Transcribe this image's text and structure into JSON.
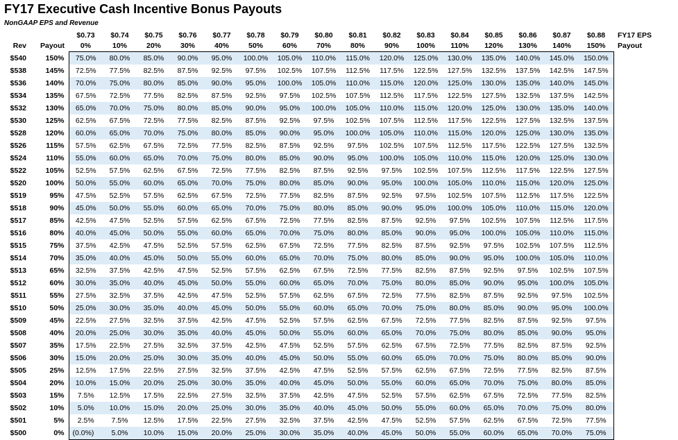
{
  "title": "FY17 Executive Cash Incentive Bonus Payouts",
  "subtitle": "NonGAAP EPS and Revenue",
  "header": {
    "eps_values": [
      "$0.73",
      "$0.74",
      "$0.75",
      "$0.76",
      "$0.77",
      "$0.78",
      "$0.79",
      "$0.80",
      "$0.81",
      "$0.82",
      "$0.83",
      "$0.84",
      "$0.85",
      "$0.86",
      "$0.87",
      "$0.88"
    ],
    "eps_payouts": [
      "0%",
      "10%",
      "20%",
      "30%",
      "40%",
      "50%",
      "60%",
      "70%",
      "80%",
      "90%",
      "100%",
      "110%",
      "120%",
      "130%",
      "140%",
      "150%"
    ],
    "rev_label": "Rev",
    "payout_label": "Payout",
    "eps_label": "FY17 EPS",
    "eps_payout_label": "Payout"
  },
  "colors": {
    "band": "#ddebf7",
    "background": "#ffffff",
    "text": "#000000"
  },
  "rows": [
    {
      "rev": "$540",
      "payout": "150%",
      "cells": [
        "75.0%",
        "80.0%",
        "85.0%",
        "90.0%",
        "95.0%",
        "100.0%",
        "105.0%",
        "110.0%",
        "115.0%",
        "120.0%",
        "125.0%",
        "130.0%",
        "135.0%",
        "140.0%",
        "145.0%",
        "150.0%"
      ]
    },
    {
      "rev": "$538",
      "payout": "145%",
      "cells": [
        "72.5%",
        "77.5%",
        "82.5%",
        "87.5%",
        "92.5%",
        "97.5%",
        "102.5%",
        "107.5%",
        "112.5%",
        "117.5%",
        "122.5%",
        "127.5%",
        "132.5%",
        "137.5%",
        "142.5%",
        "147.5%"
      ]
    },
    {
      "rev": "$536",
      "payout": "140%",
      "cells": [
        "70.0%",
        "75.0%",
        "80.0%",
        "85.0%",
        "90.0%",
        "95.0%",
        "100.0%",
        "105.0%",
        "110.0%",
        "115.0%",
        "120.0%",
        "125.0%",
        "130.0%",
        "135.0%",
        "140.0%",
        "145.0%"
      ]
    },
    {
      "rev": "$534",
      "payout": "135%",
      "cells": [
        "67.5%",
        "72.5%",
        "77.5%",
        "82.5%",
        "87.5%",
        "92.5%",
        "97.5%",
        "102.5%",
        "107.5%",
        "112.5%",
        "117.5%",
        "122.5%",
        "127.5%",
        "132.5%",
        "137.5%",
        "142.5%"
      ]
    },
    {
      "rev": "$532",
      "payout": "130%",
      "cells": [
        "65.0%",
        "70.0%",
        "75.0%",
        "80.0%",
        "85.0%",
        "90.0%",
        "95.0%",
        "100.0%",
        "105.0%",
        "110.0%",
        "115.0%",
        "120.0%",
        "125.0%",
        "130.0%",
        "135.0%",
        "140.0%"
      ]
    },
    {
      "rev": "$530",
      "payout": "125%",
      "cells": [
        "62.5%",
        "67.5%",
        "72.5%",
        "77.5%",
        "82.5%",
        "87.5%",
        "92.5%",
        "97.5%",
        "102.5%",
        "107.5%",
        "112.5%",
        "117.5%",
        "122.5%",
        "127.5%",
        "132.5%",
        "137.5%"
      ]
    },
    {
      "rev": "$528",
      "payout": "120%",
      "cells": [
        "60.0%",
        "65.0%",
        "70.0%",
        "75.0%",
        "80.0%",
        "85.0%",
        "90.0%",
        "95.0%",
        "100.0%",
        "105.0%",
        "110.0%",
        "115.0%",
        "120.0%",
        "125.0%",
        "130.0%",
        "135.0%"
      ]
    },
    {
      "rev": "$526",
      "payout": "115%",
      "cells": [
        "57.5%",
        "62.5%",
        "67.5%",
        "72.5%",
        "77.5%",
        "82.5%",
        "87.5%",
        "92.5%",
        "97.5%",
        "102.5%",
        "107.5%",
        "112.5%",
        "117.5%",
        "122.5%",
        "127.5%",
        "132.5%"
      ]
    },
    {
      "rev": "$524",
      "payout": "110%",
      "cells": [
        "55.0%",
        "60.0%",
        "65.0%",
        "70.0%",
        "75.0%",
        "80.0%",
        "85.0%",
        "90.0%",
        "95.0%",
        "100.0%",
        "105.0%",
        "110.0%",
        "115.0%",
        "120.0%",
        "125.0%",
        "130.0%"
      ]
    },
    {
      "rev": "$522",
      "payout": "105%",
      "cells": [
        "52.5%",
        "57.5%",
        "62.5%",
        "67.5%",
        "72.5%",
        "77.5%",
        "82.5%",
        "87.5%",
        "92.5%",
        "97.5%",
        "102.5%",
        "107.5%",
        "112.5%",
        "117.5%",
        "122.5%",
        "127.5%"
      ]
    },
    {
      "rev": "$520",
      "payout": "100%",
      "cells": [
        "50.0%",
        "55.0%",
        "60.0%",
        "65.0%",
        "70.0%",
        "75.0%",
        "80.0%",
        "85.0%",
        "90.0%",
        "95.0%",
        "100.0%",
        "105.0%",
        "110.0%",
        "115.0%",
        "120.0%",
        "125.0%"
      ]
    },
    {
      "rev": "$519",
      "payout": "95%",
      "cells": [
        "47.5%",
        "52.5%",
        "57.5%",
        "62.5%",
        "67.5%",
        "72.5%",
        "77.5%",
        "82.5%",
        "87.5%",
        "92.5%",
        "97.5%",
        "102.5%",
        "107.5%",
        "112.5%",
        "117.5%",
        "122.5%"
      ]
    },
    {
      "rev": "$518",
      "payout": "90%",
      "cells": [
        "45.0%",
        "50.0%",
        "55.0%",
        "60.0%",
        "65.0%",
        "70.0%",
        "75.0%",
        "80.0%",
        "85.0%",
        "90.0%",
        "95.0%",
        "100.0%",
        "105.0%",
        "110.0%",
        "115.0%",
        "120.0%"
      ]
    },
    {
      "rev": "$517",
      "payout": "85%",
      "cells": [
        "42.5%",
        "47.5%",
        "52.5%",
        "57.5%",
        "62.5%",
        "67.5%",
        "72.5%",
        "77.5%",
        "82.5%",
        "87.5%",
        "92.5%",
        "97.5%",
        "102.5%",
        "107.5%",
        "112.5%",
        "117.5%"
      ]
    },
    {
      "rev": "$516",
      "payout": "80%",
      "cells": [
        "40.0%",
        "45.0%",
        "50.0%",
        "55.0%",
        "60.0%",
        "65.0%",
        "70.0%",
        "75.0%",
        "80.0%",
        "85.0%",
        "90.0%",
        "95.0%",
        "100.0%",
        "105.0%",
        "110.0%",
        "115.0%"
      ]
    },
    {
      "rev": "$515",
      "payout": "75%",
      "cells": [
        "37.5%",
        "42.5%",
        "47.5%",
        "52.5%",
        "57.5%",
        "62.5%",
        "67.5%",
        "72.5%",
        "77.5%",
        "82.5%",
        "87.5%",
        "92.5%",
        "97.5%",
        "102.5%",
        "107.5%",
        "112.5%"
      ]
    },
    {
      "rev": "$514",
      "payout": "70%",
      "cells": [
        "35.0%",
        "40.0%",
        "45.0%",
        "50.0%",
        "55.0%",
        "60.0%",
        "65.0%",
        "70.0%",
        "75.0%",
        "80.0%",
        "85.0%",
        "90.0%",
        "95.0%",
        "100.0%",
        "105.0%",
        "110.0%"
      ]
    },
    {
      "rev": "$513",
      "payout": "65%",
      "cells": [
        "32.5%",
        "37.5%",
        "42.5%",
        "47.5%",
        "52.5%",
        "57.5%",
        "62.5%",
        "67.5%",
        "72.5%",
        "77.5%",
        "82.5%",
        "87.5%",
        "92.5%",
        "97.5%",
        "102.5%",
        "107.5%"
      ]
    },
    {
      "rev": "$512",
      "payout": "60%",
      "cells": [
        "30.0%",
        "35.0%",
        "40.0%",
        "45.0%",
        "50.0%",
        "55.0%",
        "60.0%",
        "65.0%",
        "70.0%",
        "75.0%",
        "80.0%",
        "85.0%",
        "90.0%",
        "95.0%",
        "100.0%",
        "105.0%"
      ]
    },
    {
      "rev": "$511",
      "payout": "55%",
      "cells": [
        "27.5%",
        "32.5%",
        "37.5%",
        "42.5%",
        "47.5%",
        "52.5%",
        "57.5%",
        "62.5%",
        "67.5%",
        "72.5%",
        "77.5%",
        "82.5%",
        "87.5%",
        "92.5%",
        "97.5%",
        "102.5%"
      ]
    },
    {
      "rev": "$510",
      "payout": "50%",
      "cells": [
        "25.0%",
        "30.0%",
        "35.0%",
        "40.0%",
        "45.0%",
        "50.0%",
        "55.0%",
        "60.0%",
        "65.0%",
        "70.0%",
        "75.0%",
        "80.0%",
        "85.0%",
        "90.0%",
        "95.0%",
        "100.0%"
      ]
    },
    {
      "rev": "$509",
      "payout": "45%",
      "cells": [
        "22.5%",
        "27.5%",
        "32.5%",
        "37.5%",
        "42.5%",
        "47.5%",
        "52.5%",
        "57.5%",
        "62.5%",
        "67.5%",
        "72.5%",
        "77.5%",
        "82.5%",
        "87.5%",
        "92.5%",
        "97.5%"
      ]
    },
    {
      "rev": "$508",
      "payout": "40%",
      "cells": [
        "20.0%",
        "25.0%",
        "30.0%",
        "35.0%",
        "40.0%",
        "45.0%",
        "50.0%",
        "55.0%",
        "60.0%",
        "65.0%",
        "70.0%",
        "75.0%",
        "80.0%",
        "85.0%",
        "90.0%",
        "95.0%"
      ]
    },
    {
      "rev": "$507",
      "payout": "35%",
      "cells": [
        "17.5%",
        "22.5%",
        "27.5%",
        "32.5%",
        "37.5%",
        "42.5%",
        "47.5%",
        "52.5%",
        "57.5%",
        "62.5%",
        "67.5%",
        "72.5%",
        "77.5%",
        "82.5%",
        "87.5%",
        "92.5%"
      ]
    },
    {
      "rev": "$506",
      "payout": "30%",
      "cells": [
        "15.0%",
        "20.0%",
        "25.0%",
        "30.0%",
        "35.0%",
        "40.0%",
        "45.0%",
        "50.0%",
        "55.0%",
        "60.0%",
        "65.0%",
        "70.0%",
        "75.0%",
        "80.0%",
        "85.0%",
        "90.0%"
      ]
    },
    {
      "rev": "$505",
      "payout": "25%",
      "cells": [
        "12.5%",
        "17.5%",
        "22.5%",
        "27.5%",
        "32.5%",
        "37.5%",
        "42.5%",
        "47.5%",
        "52.5%",
        "57.5%",
        "62.5%",
        "67.5%",
        "72.5%",
        "77.5%",
        "82.5%",
        "87.5%"
      ]
    },
    {
      "rev": "$504",
      "payout": "20%",
      "cells": [
        "10.0%",
        "15.0%",
        "20.0%",
        "25.0%",
        "30.0%",
        "35.0%",
        "40.0%",
        "45.0%",
        "50.0%",
        "55.0%",
        "60.0%",
        "65.0%",
        "70.0%",
        "75.0%",
        "80.0%",
        "85.0%"
      ]
    },
    {
      "rev": "$503",
      "payout": "15%",
      "cells": [
        "7.5%",
        "12.5%",
        "17.5%",
        "22.5%",
        "27.5%",
        "32.5%",
        "37.5%",
        "42.5%",
        "47.5%",
        "52.5%",
        "57.5%",
        "62.5%",
        "67.5%",
        "72.5%",
        "77.5%",
        "82.5%"
      ]
    },
    {
      "rev": "$502",
      "payout": "10%",
      "cells": [
        "5.0%",
        "10.0%",
        "15.0%",
        "20.0%",
        "25.0%",
        "30.0%",
        "35.0%",
        "40.0%",
        "45.0%",
        "50.0%",
        "55.0%",
        "60.0%",
        "65.0%",
        "70.0%",
        "75.0%",
        "80.0%"
      ]
    },
    {
      "rev": "$501",
      "payout": "5%",
      "cells": [
        "2.5%",
        "7.5%",
        "12.5%",
        "17.5%",
        "22.5%",
        "27.5%",
        "32.5%",
        "37.5%",
        "42.5%",
        "47.5%",
        "52.5%",
        "57.5%",
        "62.5%",
        "67.5%",
        "72.5%",
        "77.5%"
      ]
    },
    {
      "rev": "$500",
      "payout": "0%",
      "cells": [
        "(0.0%)",
        "5.0%",
        "10.0%",
        "15.0%",
        "20.0%",
        "25.0%",
        "30.0%",
        "35.0%",
        "40.0%",
        "45.0%",
        "50.0%",
        "55.0%",
        "60.0%",
        "65.0%",
        "70.0%",
        "75.0%"
      ]
    }
  ]
}
